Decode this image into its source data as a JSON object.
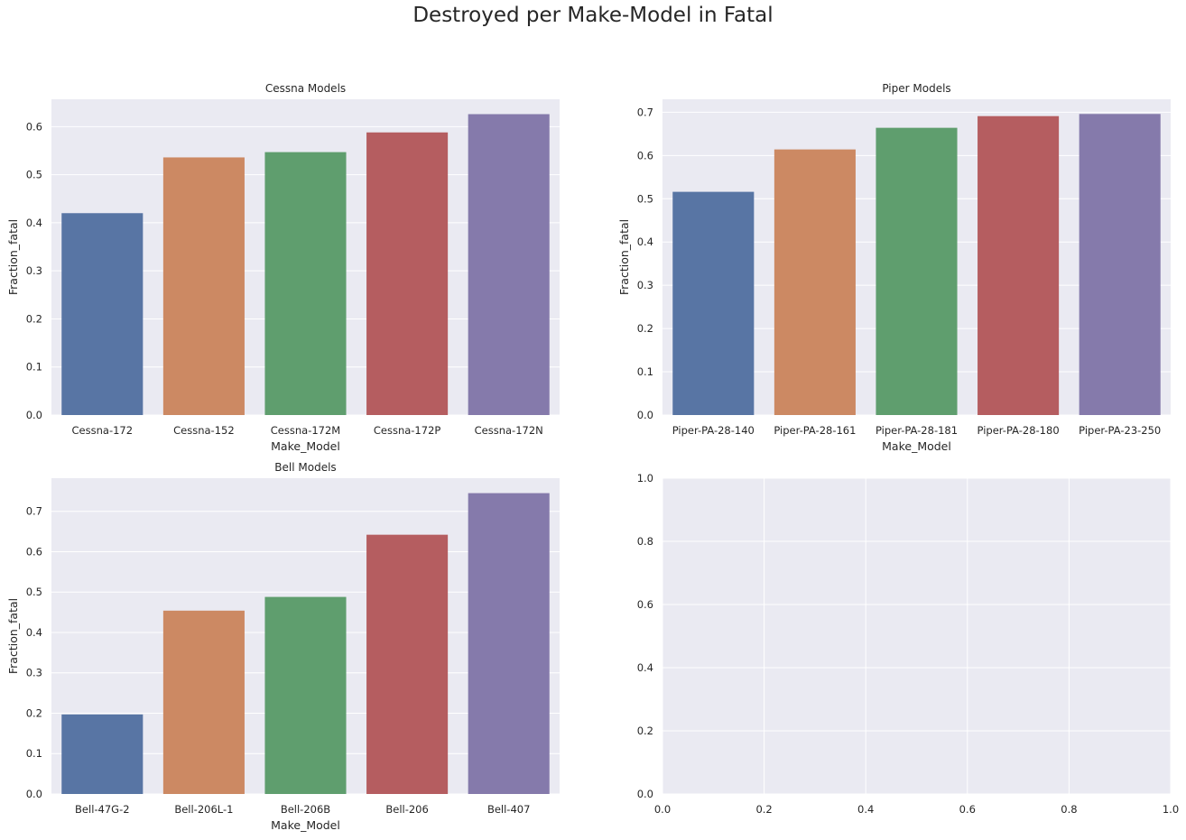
{
  "suptitle": "Destroyed per Make-Model in Fatal",
  "palette": [
    "#5875a4",
    "#cc8963",
    "#5f9e6e",
    "#b55d60",
    "#857aab"
  ],
  "chart_data": [
    {
      "type": "bar",
      "title": "Cessna Models",
      "xlabel": "Make_Model",
      "ylabel": "Fraction_fatal",
      "categories": [
        "Cessna-172",
        "Cessna-152",
        "Cessna-172M",
        "Cessna-172P",
        "Cessna-172N"
      ],
      "values": [
        0.42,
        0.536,
        0.547,
        0.588,
        0.626
      ],
      "ylim": [
        0,
        0.657
      ],
      "yticks": [
        0.0,
        0.1,
        0.2,
        0.3,
        0.4,
        0.5,
        0.6
      ],
      "ytick_labels": [
        "0.0",
        "0.1",
        "0.2",
        "0.3",
        "0.4",
        "0.5",
        "0.6"
      ],
      "grid": true
    },
    {
      "type": "bar",
      "title": "Piper Models",
      "xlabel": "Make_Model",
      "ylabel": "Fraction_fatal",
      "categories": [
        "Piper-PA-28-140",
        "Piper-PA-28-161",
        "Piper-PA-28-181",
        "Piper-PA-28-180",
        "Piper-PA-23-250"
      ],
      "values": [
        0.516,
        0.614,
        0.664,
        0.691,
        0.696
      ],
      "ylim": [
        0,
        0.73
      ],
      "yticks": [
        0.0,
        0.1,
        0.2,
        0.3,
        0.4,
        0.5,
        0.6,
        0.7
      ],
      "ytick_labels": [
        "0.0",
        "0.1",
        "0.2",
        "0.3",
        "0.4",
        "0.5",
        "0.6",
        "0.7"
      ],
      "grid": true
    },
    {
      "type": "bar",
      "title": "Bell Models",
      "xlabel": "Make_Model",
      "ylabel": "Fraction_fatal",
      "categories": [
        "Bell-47G-2",
        "Bell-206L-1",
        "Bell-206B",
        "Bell-206",
        "Bell-407"
      ],
      "values": [
        0.197,
        0.454,
        0.488,
        0.642,
        0.745
      ],
      "ylim": [
        0,
        0.782
      ],
      "yticks": [
        0.0,
        0.1,
        0.2,
        0.3,
        0.4,
        0.5,
        0.6,
        0.7
      ],
      "ytick_labels": [
        "0.0",
        "0.1",
        "0.2",
        "0.3",
        "0.4",
        "0.5",
        "0.6",
        "0.7"
      ],
      "grid": true
    },
    {
      "type": "empty",
      "title": "",
      "xlabel": "",
      "ylabel": "",
      "xlim": [
        0,
        1
      ],
      "ylim": [
        0,
        1
      ],
      "xticks": [
        0.0,
        0.2,
        0.4,
        0.6,
        0.8,
        1.0
      ],
      "xtick_labels": [
        "0.0",
        "0.2",
        "0.4",
        "0.6",
        "0.8",
        "1.0"
      ],
      "yticks": [
        0.0,
        0.2,
        0.4,
        0.6,
        0.8,
        1.0
      ],
      "ytick_labels": [
        "0.0",
        "0.2",
        "0.4",
        "0.6",
        "0.8",
        "1.0"
      ],
      "grid": true
    }
  ]
}
